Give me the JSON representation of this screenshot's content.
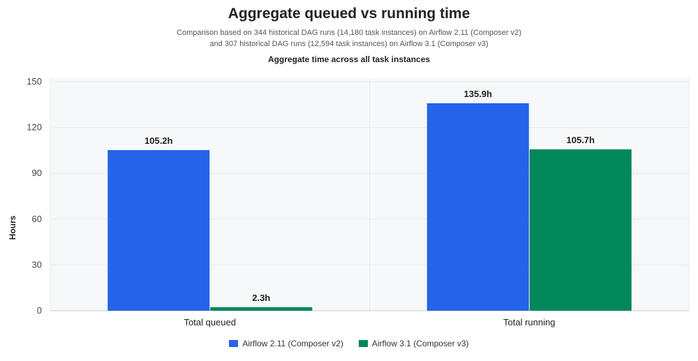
{
  "chart_data": {
    "type": "bar",
    "title": "Aggregate queued vs running time",
    "subtitle_lines": [
      "Comparison based on 344 historical DAG runs (14,180 task instances) on Airflow 2.11 (Composer v2)",
      "and 307 historical DAG runs (12,594 task instances) on Airflow 3.1 (Composer v3)"
    ],
    "caption": "Aggregate time across all task instances",
    "categories": [
      "Total queued",
      "Total running"
    ],
    "series": [
      {
        "name": "Airflow 2.11 (Composer v2)",
        "values": [
          105.2,
          135.9
        ],
        "labels": [
          "105.2h",
          "135.9h"
        ],
        "color": "#2563eb"
      },
      {
        "name": "Airflow 3.1 (Composer v3)",
        "values": [
          2.3,
          105.7
        ],
        "labels": [
          "2.3h",
          "105.7h"
        ],
        "color": "#00875a"
      }
    ],
    "xlabel": "",
    "ylabel": "Hours",
    "ylim": [
      0,
      150
    ],
    "yticks": [
      "0",
      "30",
      "60",
      "90",
      "120",
      "150"
    ],
    "grid": true,
    "legend": "bottom-center"
  }
}
